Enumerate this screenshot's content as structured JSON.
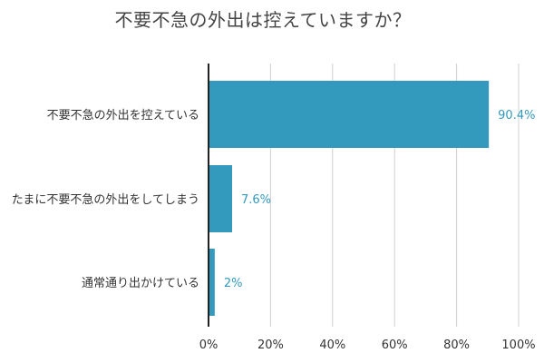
{
  "chart_data": {
    "type": "bar",
    "orientation": "horizontal",
    "title": "不要不急の外出は控えていますか？",
    "categories": [
      "不要不急の外出を控えている",
      "たまに不要不急の外出をしてしまう",
      "通常通り出かけている"
    ],
    "values": [
      90.4,
      7.6,
      2
    ],
    "value_labels": [
      "90.4%",
      "7.6%",
      "2%"
    ],
    "xlim": [
      0,
      100
    ],
    "x_ticks": [
      "0%",
      "20%",
      "40%",
      "60%",
      "80%",
      "100%"
    ],
    "xlabel": "",
    "ylabel": "",
    "grid": true,
    "legend": "none",
    "colors": {
      "bar": "#3399bd",
      "label": "#3399bd",
      "grid": "#d0d0d0",
      "axis": "#222222"
    }
  }
}
